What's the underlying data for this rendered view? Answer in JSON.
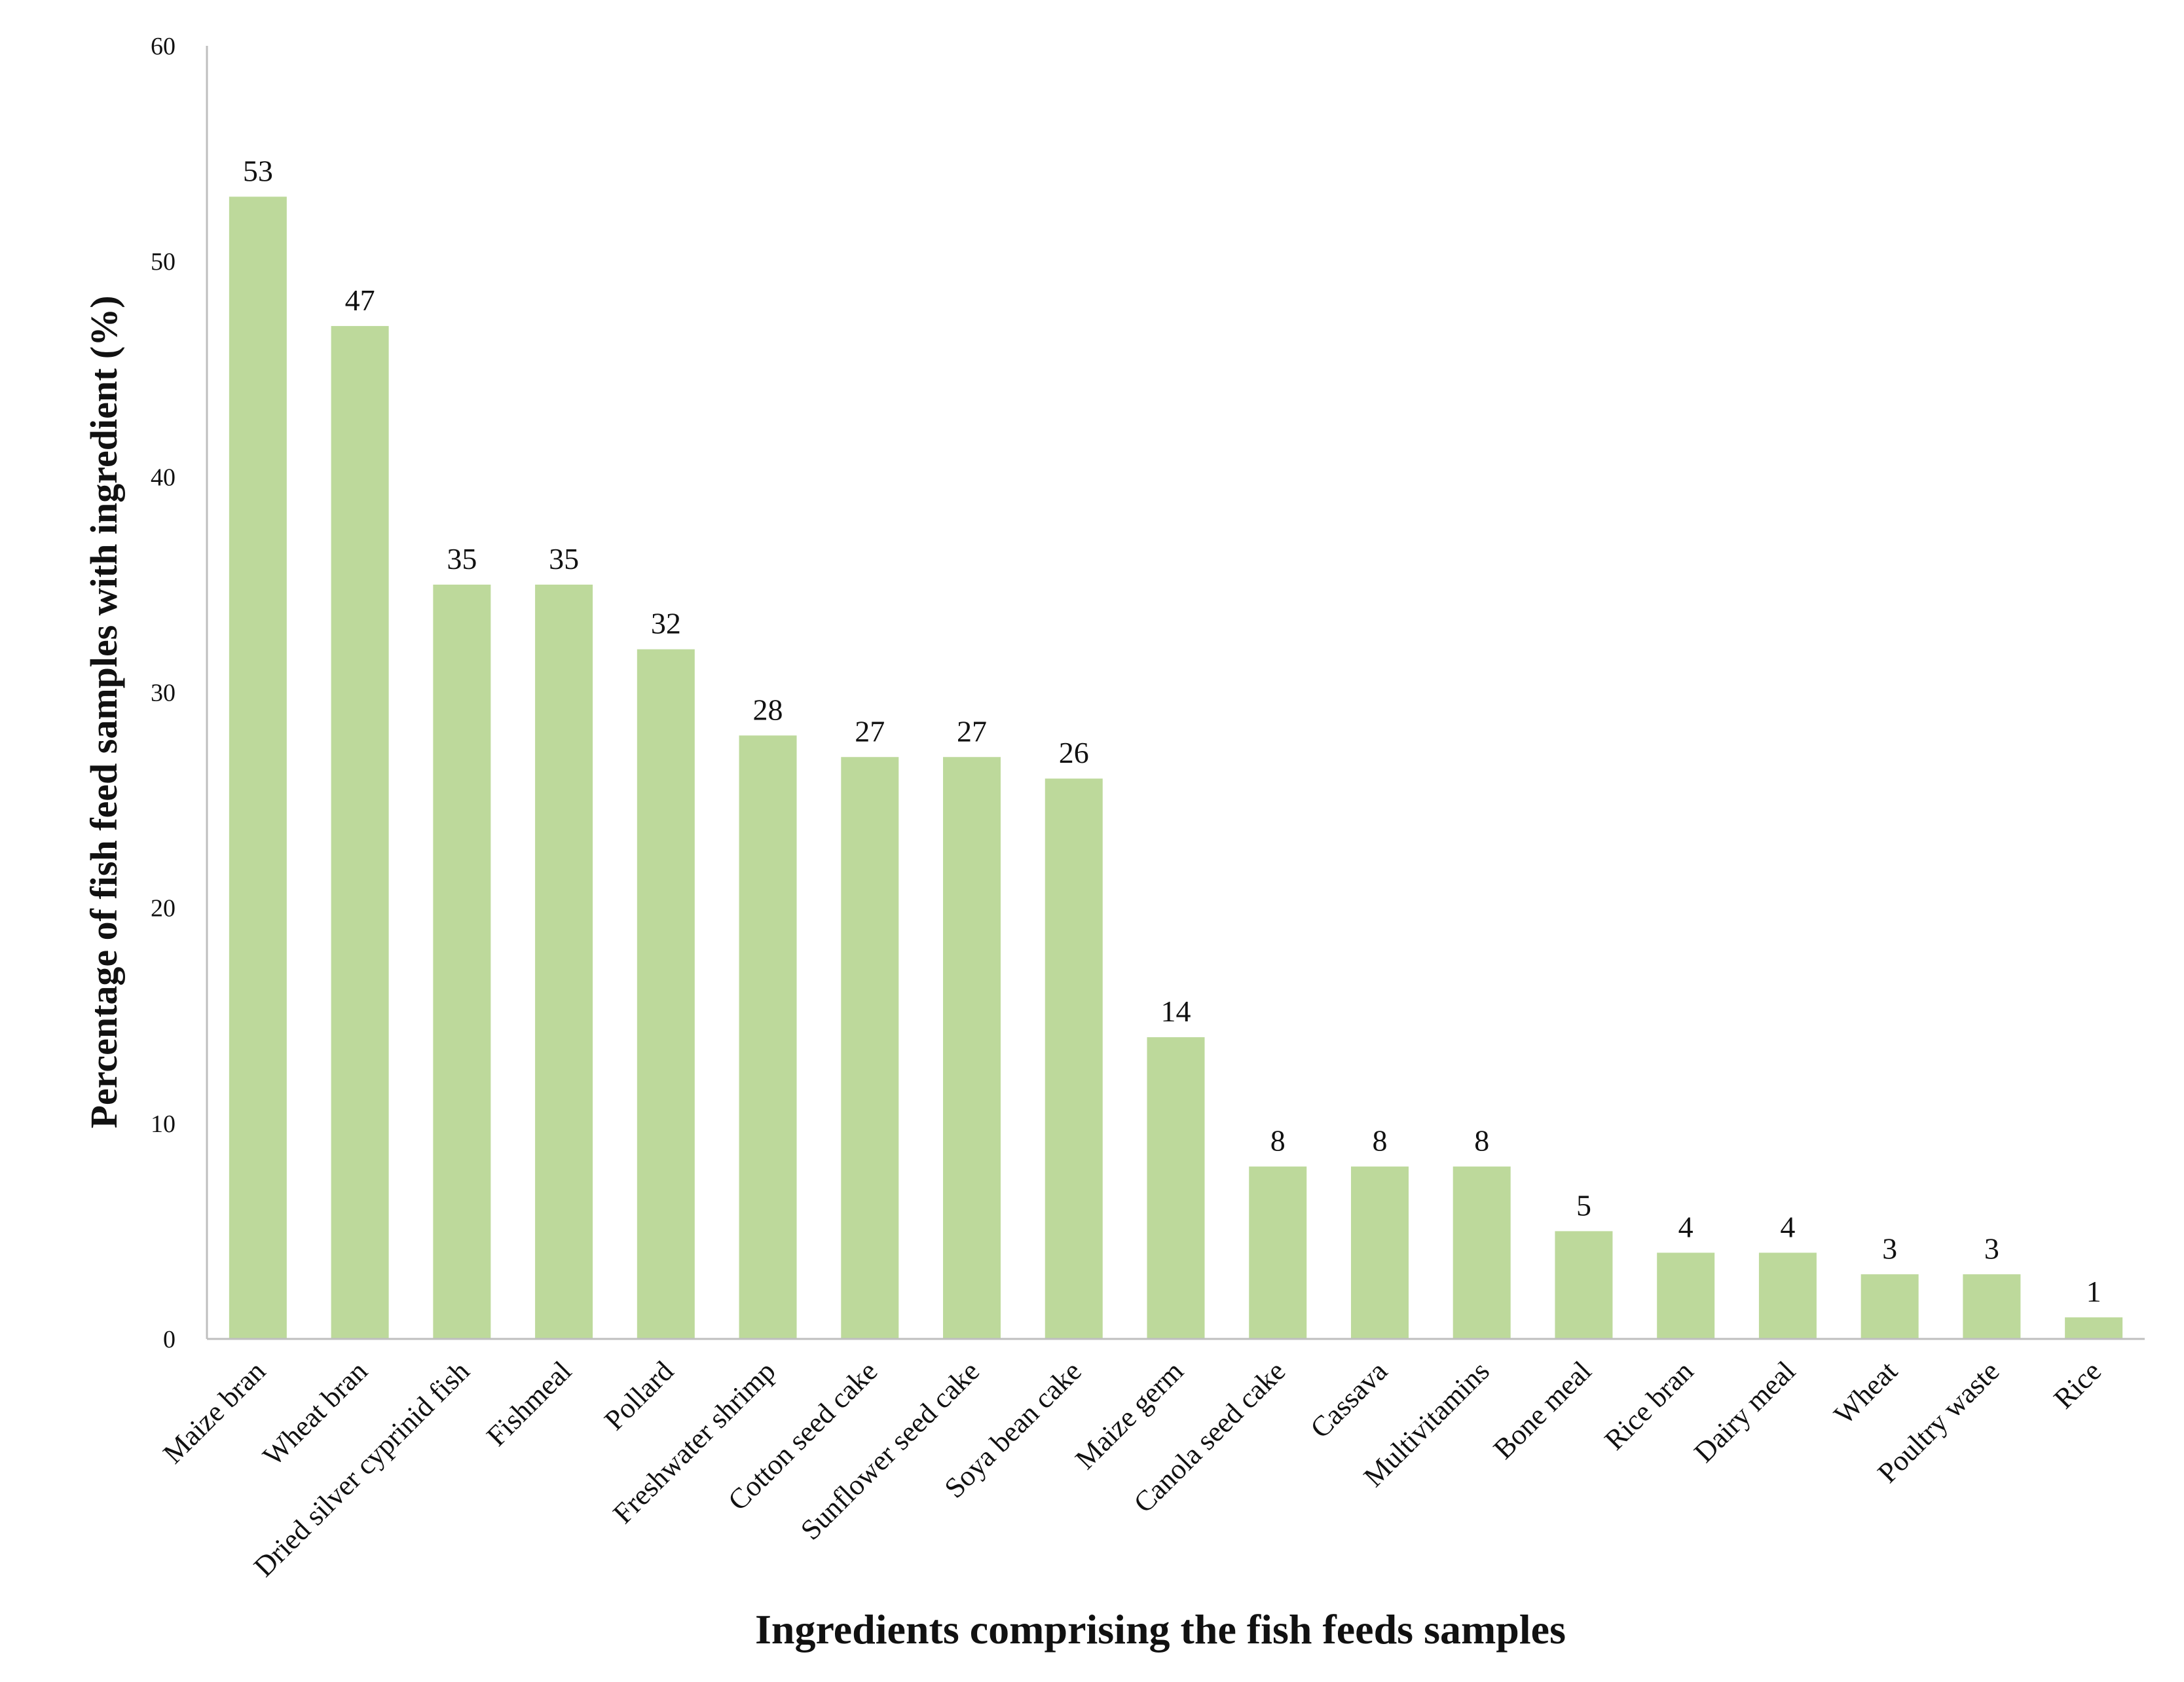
{
  "chart_data": {
    "type": "bar",
    "title": "",
    "xlabel": "Ingredients comprising the fish feeds samples",
    "ylabel": "Percentage of fish feed samples with ingredient (%)",
    "ylim": [
      0,
      60
    ],
    "yticks": [
      0,
      10,
      20,
      30,
      40,
      50,
      60
    ],
    "grid": false,
    "legend": "none",
    "bar_color": "#bdd99b",
    "axis_color": "#bfbfbf",
    "categories": [
      "Maize bran",
      "Wheat bran",
      "Dried silver cyprinid fish",
      "Fishmeal",
      "Pollard",
      "Freshwater shrimp",
      "Cotton seed cake",
      "Sunflower seed cake",
      "Soya bean cake",
      "Maize germ",
      "Canola seed cake",
      "Cassava",
      "Multivitamins",
      "Bone meal",
      "Rice bran",
      "Dairy meal",
      "Wheat",
      "Poultry waste",
      "Rice"
    ],
    "values": [
      53,
      47,
      35,
      35,
      32,
      28,
      27,
      27,
      26,
      14,
      8,
      8,
      8,
      5,
      4,
      4,
      3,
      3,
      1
    ]
  }
}
